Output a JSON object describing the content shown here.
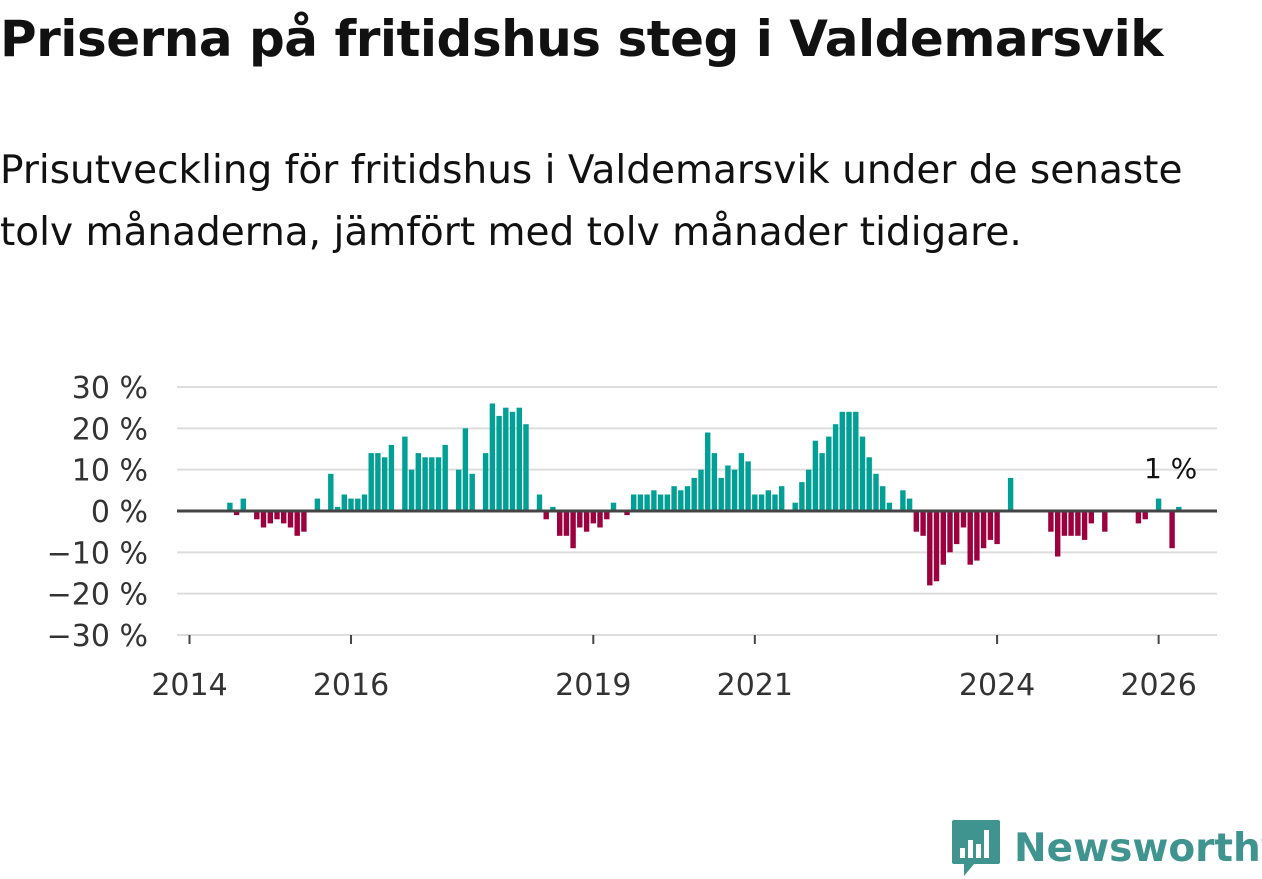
{
  "title": "Priserna på fritidshus steg i Valdemarsvik",
  "subtitle": "Prisutveckling för fritidshus i Valdemarsvik under de senaste tolv månaderna, jämfört med tolv månader tidigare.",
  "brand": {
    "name": "Newsworthy",
    "logo_icon": "bar-chart-bubble-icon"
  },
  "colors": {
    "positive": "#00a096",
    "negative": "#9d003f",
    "zero_line": "#444444",
    "grid": "#dddddd",
    "brand": "#40948f"
  },
  "chart_data": {
    "type": "bar",
    "title": "Priserna på fritidshus steg i Valdemarsvik",
    "xlabel": "",
    "ylabel": "",
    "ylim": [
      -30,
      30
    ],
    "yticks": [
      30,
      20,
      10,
      0,
      -10,
      -20,
      -30
    ],
    "ytick_labels": [
      "30 %",
      "20 %",
      "10 %",
      "0 %",
      "−10 %",
      "−20 %",
      "−30 %"
    ],
    "x_start": "2014-01",
    "xticks": [
      {
        "label": "2014",
        "month_index": 0
      },
      {
        "label": "2016",
        "month_index": 24
      },
      {
        "label": "2019",
        "month_index": 60
      },
      {
        "label": "2021",
        "month_index": 84
      },
      {
        "label": "2024",
        "month_index": 120
      },
      {
        "label": "2026",
        "month_index": 144
      }
    ],
    "annotation": {
      "text": "1 %",
      "month_index": 144,
      "value": 1
    },
    "values": [
      null,
      null,
      null,
      null,
      null,
      null,
      2,
      -1,
      3,
      null,
      -2,
      -4,
      -3,
      -2,
      -3,
      -4,
      -6,
      -5,
      null,
      3,
      null,
      9,
      1,
      4,
      3,
      3,
      4,
      14,
      14,
      13,
      16,
      null,
      18,
      10,
      14,
      13,
      13,
      13,
      16,
      null,
      10,
      20,
      9,
      null,
      14,
      26,
      23,
      25,
      24,
      25,
      21,
      null,
      4,
      -2,
      1,
      -6,
      -6,
      -9,
      -4,
      -5,
      -3,
      -4,
      -2,
      2,
      null,
      -1,
      4,
      4,
      4,
      5,
      4,
      4,
      6,
      5,
      6,
      8,
      10,
      19,
      14,
      8,
      11,
      10,
      14,
      12,
      4,
      4,
      5,
      4,
      6,
      null,
      2,
      7,
      10,
      17,
      14,
      18,
      21,
      24,
      24,
      24,
      18,
      13,
      9,
      6,
      2,
      null,
      5,
      3,
      -5,
      -6,
      -18,
      -17,
      -13,
      -10,
      -8,
      -4,
      -13,
      -12,
      -9,
      -7,
      -8,
      null,
      8,
      null,
      null,
      null,
      null,
      null,
      -5,
      -11,
      -6,
      -6,
      -6,
      -7,
      -3,
      null,
      -5,
      null,
      null,
      null,
      null,
      -3,
      -2,
      null,
      3,
      null,
      -9,
      1
    ]
  }
}
